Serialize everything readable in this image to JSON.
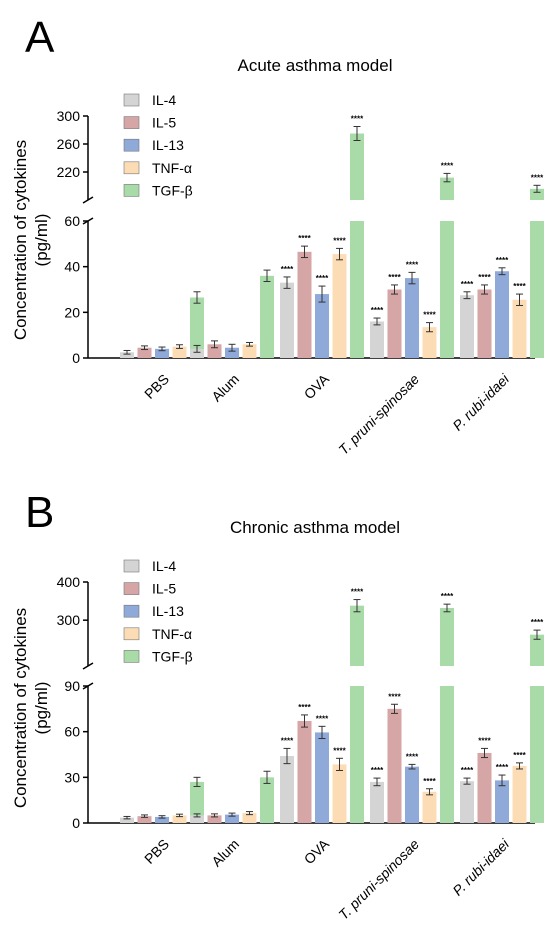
{
  "chart_data": [
    {
      "type": "bar",
      "panel_label": "A",
      "title": "Acute asthma model",
      "ylabel": "Concentration of cytokines\n(pg/ml)",
      "xlabel": "",
      "categories": [
        "PBS",
        "Alum",
        "OVA",
        "T. pruni-spinosae",
        "P. rubi-idaei"
      ],
      "italic_categories": [
        false,
        false,
        false,
        true,
        true
      ],
      "y_axis_broken": true,
      "ylim_lower": [
        0,
        60
      ],
      "ylim_upper": [
        180,
        300
      ],
      "lower_ticks": [
        0,
        20,
        40,
        60
      ],
      "upper_ticks": [
        220,
        260,
        300
      ],
      "legend_position": "top-left",
      "grid": false,
      "series": [
        {
          "name": "IL-4",
          "color": "#d4d4d4",
          "values": [
            2.5,
            4,
            33,
            16,
            27.5
          ],
          "errors": [
            0.8,
            1.5,
            2.5,
            1.5,
            1.5
          ],
          "sig": [
            "",
            "",
            "****",
            "****",
            "****"
          ]
        },
        {
          "name": "IL-5",
          "color": "#d6a6a6",
          "values": [
            4.5,
            6,
            46.5,
            30,
            30
          ],
          "errors": [
            0.8,
            1.5,
            2.5,
            2,
            2
          ],
          "sig": [
            "",
            "",
            "****",
            "****",
            "****"
          ]
        },
        {
          "name": "IL-13",
          "color": "#8fa9d9",
          "values": [
            4,
            4.5,
            28,
            35,
            38
          ],
          "errors": [
            0.8,
            1.5,
            3.5,
            2.5,
            1.5
          ],
          "sig": [
            "",
            "",
            "****",
            "****",
            "****"
          ]
        },
        {
          "name": "TNF-α",
          "color": "#fcdcb4",
          "values": [
            5,
            6,
            45.5,
            13.5,
            25.5
          ],
          "errors": [
            0.8,
            0.8,
            2.5,
            2,
            2.5
          ],
          "sig": [
            "",
            "",
            "****",
            "****",
            "****"
          ]
        },
        {
          "name": "TGF-β",
          "color": "#a8dba8",
          "values": [
            26.5,
            36,
            275,
            212,
            196
          ],
          "errors": [
            2.5,
            2.5,
            10,
            6,
            5
          ],
          "sig": [
            "",
            "",
            "****",
            "****",
            "****"
          ]
        }
      ]
    },
    {
      "type": "bar",
      "panel_label": "B",
      "title": "Chronic asthma model",
      "ylabel": "Concentration of cytokines\n(pg/ml)",
      "xlabel": "",
      "categories": [
        "PBS",
        "Alum",
        "OVA",
        "T. pruni-spinosae",
        "P. rubi-idaei"
      ],
      "italic_categories": [
        false,
        false,
        false,
        true,
        true
      ],
      "y_axis_broken": true,
      "ylim_lower": [
        0,
        90
      ],
      "ylim_upper": [
        180,
        400
      ],
      "lower_ticks": [
        0,
        30,
        60,
        90
      ],
      "upper_ticks": [
        300,
        400
      ],
      "legend_position": "top-left",
      "grid": false,
      "series": [
        {
          "name": "IL-4",
          "color": "#d4d4d4",
          "values": [
            3.5,
            5,
            44,
            27,
            27.5
          ],
          "errors": [
            0.8,
            1,
            5,
            2.5,
            2
          ],
          "sig": [
            "",
            "",
            "****",
            "****",
            "****"
          ]
        },
        {
          "name": "IL-5",
          "color": "#d6a6a6",
          "values": [
            4.5,
            5,
            67,
            75,
            46
          ],
          "errors": [
            0.8,
            1,
            4,
            3,
            3
          ],
          "sig": [
            "",
            "",
            "****",
            "****",
            "****"
          ]
        },
        {
          "name": "IL-13",
          "color": "#8fa9d9",
          "values": [
            4,
            5.5,
            59.5,
            37,
            28
          ],
          "errors": [
            0.8,
            1,
            4,
            1.5,
            3.5
          ],
          "sig": [
            "",
            "",
            "****",
            "****",
            "****"
          ]
        },
        {
          "name": "TNF-α",
          "color": "#fcdcb4",
          "values": [
            5,
            6.5,
            38.5,
            20.5,
            37.5
          ],
          "errors": [
            0.8,
            1,
            4,
            2,
            2
          ],
          "sig": [
            "",
            "",
            "****",
            "****",
            "****"
          ]
        },
        {
          "name": "TGF-β",
          "color": "#a8dba8",
          "values": [
            27,
            30,
            338,
            332,
            262
          ],
          "errors": [
            3,
            4,
            16,
            10,
            12
          ],
          "sig": [
            "",
            "",
            "****",
            "****",
            "****"
          ]
        }
      ]
    }
  ]
}
